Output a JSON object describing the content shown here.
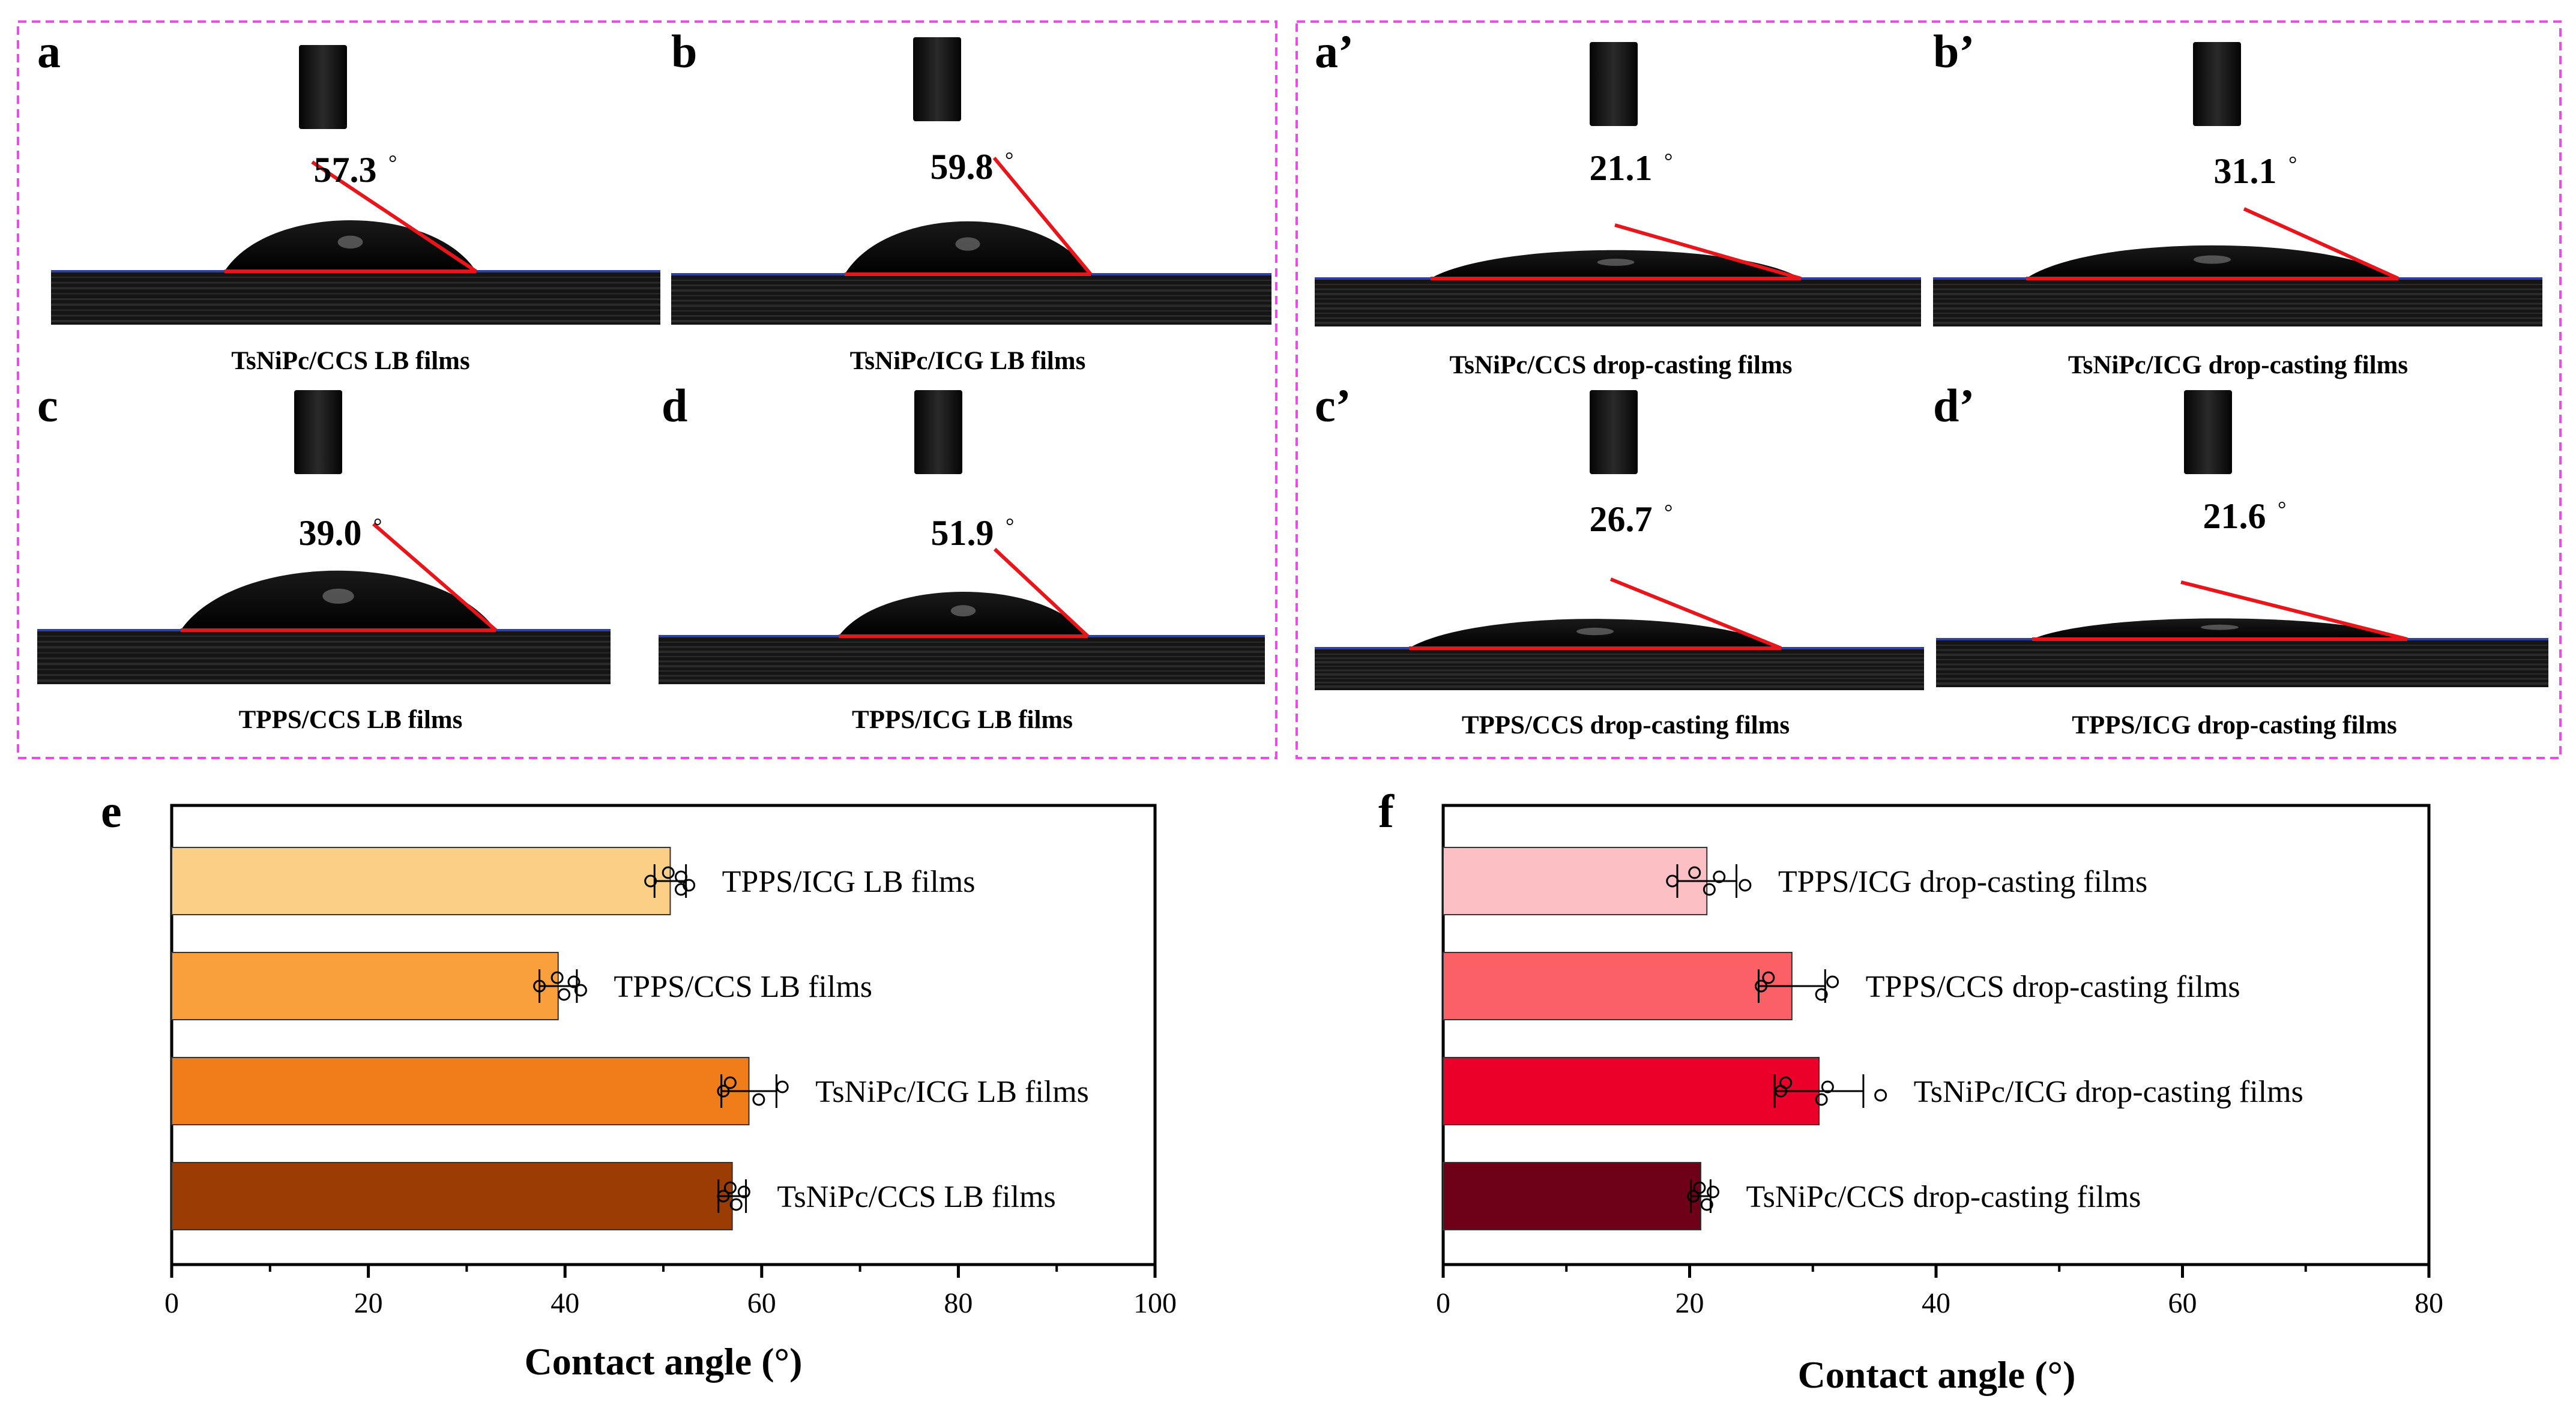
{
  "panels": [
    {
      "label": "a",
      "angle": "57.3",
      "caption": "TsNiPc/CCS LB films"
    },
    {
      "label": "b",
      "angle": "59.8",
      "caption": "TsNiPc/ICG LB films"
    },
    {
      "label": "c",
      "angle": "39.0",
      "caption": "TPPS/CCS LB films"
    },
    {
      "label": "d",
      "angle": "51.9",
      "caption": "TPPS/ICG LB films"
    },
    {
      "label": "a’",
      "angle": "21.1",
      "caption": "TsNiPc/CCS drop-casting films"
    },
    {
      "label": "b’",
      "angle": "31.1",
      "caption": "TsNiPc/ICG drop-casting films"
    },
    {
      "label": "c’",
      "angle": "26.7",
      "caption": "TPPS/CCS drop-casting films"
    },
    {
      "label": "d’",
      "angle": "21.6",
      "caption": "TPPS/ICG drop-casting films"
    }
  ],
  "degree_symbol": "°",
  "colors": {
    "dashed_box": "#e64ee6",
    "fit_line": "#e8151b",
    "substrate_line": "#3040a0"
  },
  "chart_data": [
    {
      "type": "bar",
      "orientation": "horizontal",
      "panel_label": "e",
      "xlabel": "Contact angle (°)",
      "xlim": [
        0,
        100
      ],
      "xticks": [
        0,
        20,
        40,
        60,
        80,
        100
      ],
      "categories": [
        "TPPS/ICG LB films",
        "TPPS/CCS LB films",
        "TsNiPc/ICG LB films",
        "TsNiPc/CCS LB films"
      ],
      "values": [
        50.7,
        39.3,
        58.7,
        57.0
      ],
      "errors": [
        1.6,
        1.9,
        2.8,
        1.4
      ],
      "points": [
        [
          48.7,
          50.5,
          51.8,
          51.8,
          52.6
        ],
        [
          37.4,
          39.2,
          39.9,
          40.9,
          41.6
        ],
        [
          56.1,
          56.8,
          59.7,
          62.1
        ],
        [
          56.1,
          56.8,
          57.4,
          58.2
        ]
      ],
      "colors": [
        "#fbd086",
        "#f9a03d",
        "#f17d1a",
        "#9a3c04"
      ]
    },
    {
      "type": "bar",
      "orientation": "horizontal",
      "panel_label": "f",
      "xlabel": "Contact angle (°)",
      "xlim": [
        0,
        80
      ],
      "xticks": [
        0,
        20,
        40,
        60,
        80
      ],
      "categories": [
        "TPPS/ICG drop-casting films",
        "TPPS/CCS drop-casting films",
        "TsNiPc/ICG drop-casting films",
        "TsNiPc/CCS drop-casting films"
      ],
      "values": [
        21.4,
        28.3,
        30.5,
        20.9
      ],
      "errors": [
        2.4,
        2.7,
        3.6,
        0.8
      ],
      "points": [
        [
          18.6,
          20.4,
          21.6,
          22.4,
          24.5
        ],
        [
          25.8,
          26.4,
          30.7,
          31.6
        ],
        [
          27.4,
          27.8,
          30.7,
          31.2,
          35.5
        ],
        [
          20.3,
          20.8,
          21.4,
          21.9
        ]
      ],
      "colors": [
        "#fcc0c4",
        "#fb6066",
        "#ea0029",
        "#6e0018"
      ]
    }
  ]
}
